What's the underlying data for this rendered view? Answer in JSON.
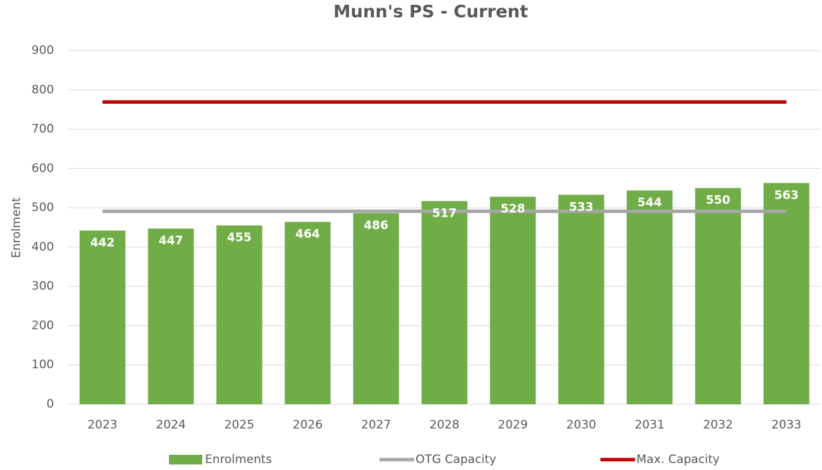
{
  "chart_data": {
    "type": "bar",
    "title": "Munn's PS - Current",
    "ylabel": "Enrolment",
    "categories": [
      "2023",
      "2024",
      "2025",
      "2026",
      "2027",
      "2028",
      "2029",
      "2030",
      "2031",
      "2032",
      "2033"
    ],
    "series": [
      {
        "name": "Enrolments",
        "type": "bar",
        "color": "#70ad47",
        "values": [
          442,
          447,
          455,
          464,
          486,
          517,
          528,
          533,
          544,
          550,
          563
        ]
      },
      {
        "name": "OTG Capacity",
        "type": "line",
        "color": "#a6a6a6",
        "values": [
          491,
          491,
          491,
          491,
          491,
          491,
          491,
          491,
          491,
          491,
          491
        ]
      },
      {
        "name": "Max. Capacity",
        "type": "line",
        "color": "#c00000",
        "values": [
          769,
          769,
          769,
          769,
          769,
          769,
          769,
          769,
          769,
          769,
          769
        ]
      }
    ],
    "ylim": [
      0,
      900
    ],
    "yticks": [
      0,
      100,
      200,
      300,
      400,
      500,
      600,
      700,
      800,
      900
    ],
    "grid": true,
    "legend": "bottom"
  }
}
